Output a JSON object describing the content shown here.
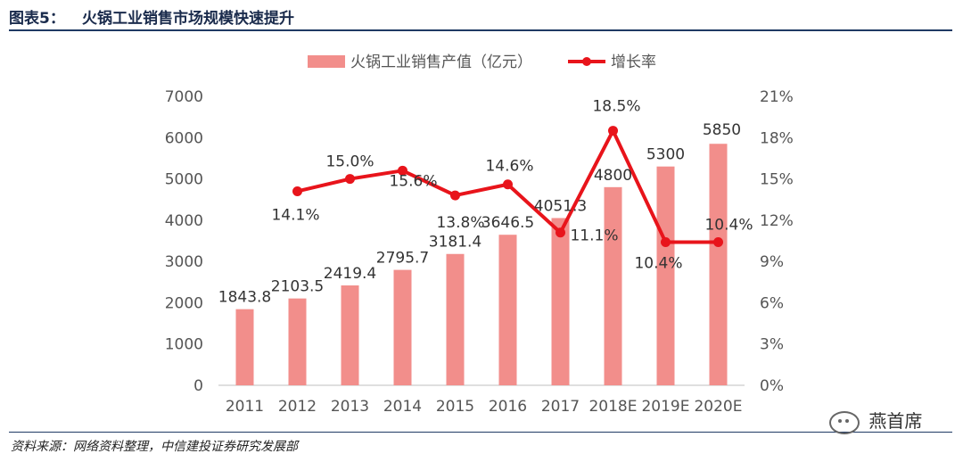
{
  "header": {
    "figure_no": "图表5：",
    "title": "火锅工业销售市场规模快速提升"
  },
  "chart_data": {
    "type": "bar+line",
    "categories": [
      "2011",
      "2012",
      "2013",
      "2014",
      "2015",
      "2016",
      "2017",
      "2018E",
      "2019E",
      "2020E"
    ],
    "series": [
      {
        "name": "火锅工业销售产值（亿元）",
        "type": "bar",
        "axis": "left",
        "color": "#f28e8b",
        "values": [
          1843.8,
          2103.5,
          2419.4,
          2795.7,
          3181.4,
          3646.5,
          4051.3,
          4800,
          5300,
          5850
        ],
        "labels": [
          "1843.8",
          "2103.5",
          "2419.4",
          "2795.7",
          "3181.4",
          "3646.5",
          "4051.3",
          "4800",
          "5300",
          "5850"
        ]
      },
      {
        "name": "增长率",
        "type": "line",
        "axis": "right",
        "color": "#e8141b",
        "values": [
          null,
          14.1,
          15.0,
          15.6,
          13.8,
          14.6,
          11.1,
          18.5,
          10.4,
          10.4
        ],
        "labels": [
          "",
          "14.1%",
          "15.0%",
          "15.6%",
          "13.8%",
          "14.6%",
          "11.1%",
          "18.5%",
          "10.4%",
          "10.4%"
        ]
      }
    ],
    "left_axis": {
      "ylim": [
        0,
        7000
      ],
      "ticks": [
        "0",
        "1000",
        "2000",
        "3000",
        "4000",
        "5000",
        "6000",
        "7000"
      ]
    },
    "right_axis": {
      "ylim": [
        0,
        21
      ],
      "ticks": [
        "0%",
        "3%",
        "6%",
        "9%",
        "12%",
        "15%",
        "18%",
        "21%"
      ]
    },
    "legend_position": "top-center",
    "grid": false
  },
  "footer": {
    "source": "资料来源：网络资料整理，中信建投证券研究发展部",
    "watermark": "燕首席"
  }
}
